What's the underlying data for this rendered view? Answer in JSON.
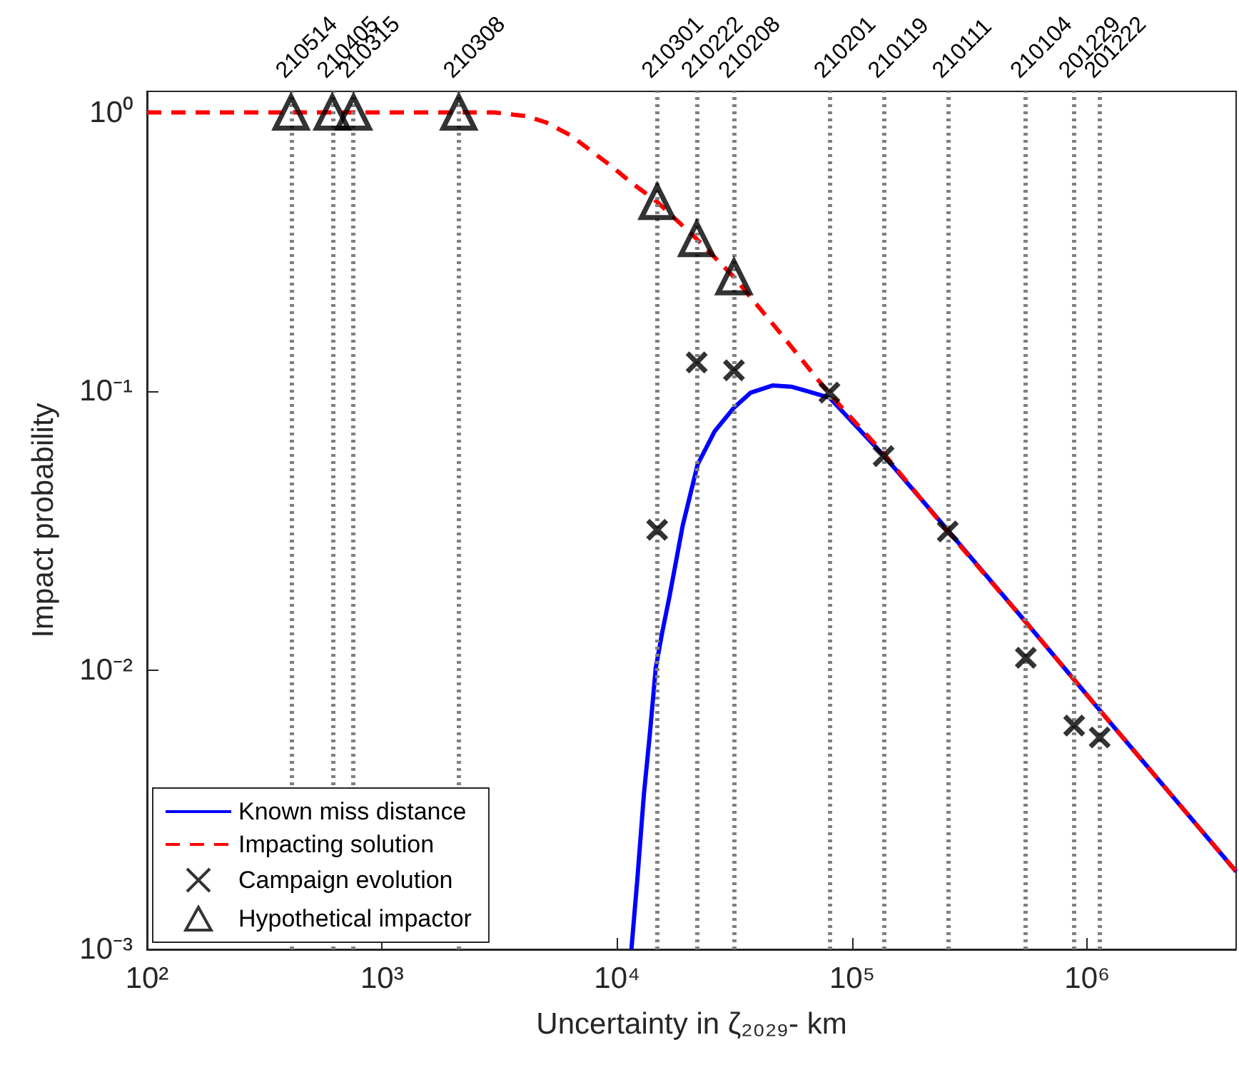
{
  "chart_data": {
    "type": "line",
    "xlabel": "Uncertainty in ζ₂₀₂₉- km",
    "ylabel": "Impact probability",
    "log": "xy",
    "grid": false,
    "legend": "bottom left",
    "xlim": [
      100,
      4300000
    ],
    "ylim": [
      0.001,
      1.19
    ],
    "xticks": [
      {
        "value": 100,
        "label": "10²"
      },
      {
        "value": 1000,
        "label": "10³"
      },
      {
        "value": 10000,
        "label": "10⁴"
      },
      {
        "value": 100000,
        "label": "10⁵"
      },
      {
        "value": 1000000,
        "label": "10⁶"
      }
    ],
    "yticks": [
      {
        "value": 0.001,
        "label": "10⁻³"
      },
      {
        "value": 0.01,
        "label": "10⁻²"
      },
      {
        "value": 0.1,
        "label": "10⁻¹"
      },
      {
        "value": 1,
        "label": "10⁰"
      }
    ],
    "series": [
      {
        "name": "Known miss distance",
        "color": "#0000ff",
        "line_style": "solid",
        "marker": "none",
        "x": [
          11500,
          12200,
          13000,
          13800,
          14600,
          15500,
          16700,
          19000,
          22000,
          26000,
          31400,
          37000,
          45800,
          55000,
          65000,
          80000,
          136000,
          255000,
          548000,
          1130000,
          4300000
        ],
        "values": [
          0.001,
          0.0018,
          0.0036,
          0.006,
          0.0102,
          0.0135,
          0.0184,
          0.033,
          0.0547,
          0.072,
          0.0874,
          0.099,
          0.105,
          0.104,
          0.1,
          0.095,
          0.059,
          0.0318,
          0.0149,
          0.0072,
          0.0019
        ]
      },
      {
        "name": "Impacting solution",
        "color": "#ff0000",
        "line_style": "dashed",
        "marker": "none",
        "x": [
          100,
          3000,
          4100,
          5000,
          6300,
          9500,
          11500,
          14800,
          21800,
          31400,
          50000,
          80000,
          136000,
          255000,
          548000,
          1130000,
          4300000
        ],
        "values": [
          1,
          1,
          0.97,
          0.92,
          0.83,
          0.64,
          0.56,
          0.478,
          0.352,
          0.257,
          0.16,
          0.098,
          0.06,
          0.0315,
          0.0149,
          0.0072,
          0.0019
        ]
      },
      {
        "name": "Campaign evolution",
        "type": "scatter",
        "color": "#000000",
        "marker": "cross",
        "x": [
          14800,
          21800,
          31400,
          80000,
          136000,
          255000,
          548000,
          880000,
          1130000
        ],
        "values": [
          0.0319,
          0.127,
          0.119,
          0.099,
          0.0586,
          0.0315,
          0.0111,
          0.00634,
          0.00575
        ]
      },
      {
        "name": "Hypothetical impactor",
        "type": "scatter",
        "color": "#000000",
        "marker": "triangle",
        "x": [
          410,
          614,
          756,
          2120,
          14800,
          21800,
          31400
        ],
        "values": [
          1,
          1,
          1,
          1,
          0.478,
          0.352,
          0.257
        ]
      }
    ],
    "ref_lines": [
      {
        "axis": "x",
        "value": 410,
        "color": "#808080",
        "line_style": "dotted"
      },
      {
        "axis": "x",
        "value": 614,
        "color": "#808080",
        "line_style": "dotted"
      },
      {
        "axis": "x",
        "value": 756,
        "color": "#808080",
        "line_style": "dotted"
      },
      {
        "axis": "x",
        "value": 2120,
        "color": "#808080",
        "line_style": "dotted"
      },
      {
        "axis": "x",
        "value": 14800,
        "color": "#808080",
        "line_style": "dotted"
      },
      {
        "axis": "x",
        "value": 21800,
        "color": "#808080",
        "line_style": "dotted"
      },
      {
        "axis": "x",
        "value": 31400,
        "color": "#808080",
        "line_style": "dotted"
      },
      {
        "axis": "x",
        "value": 80000,
        "color": "#808080",
        "line_style": "dotted"
      },
      {
        "axis": "x",
        "value": 136000,
        "color": "#808080",
        "line_style": "dotted"
      },
      {
        "axis": "x",
        "value": 255000,
        "color": "#808080",
        "line_style": "dotted"
      },
      {
        "axis": "x",
        "value": 548000,
        "color": "#808080",
        "line_style": "dotted"
      },
      {
        "axis": "x",
        "value": 880000,
        "color": "#808080",
        "line_style": "dotted"
      },
      {
        "axis": "x",
        "value": 1130000,
        "color": "#808080",
        "line_style": "dotted"
      }
    ],
    "annotations": [
      "210514",
      "210405",
      "210315",
      "210308",
      "210301",
      "210222",
      "210208",
      "210201",
      "210119",
      "210111",
      "210104",
      "201229",
      "201222"
    ]
  }
}
